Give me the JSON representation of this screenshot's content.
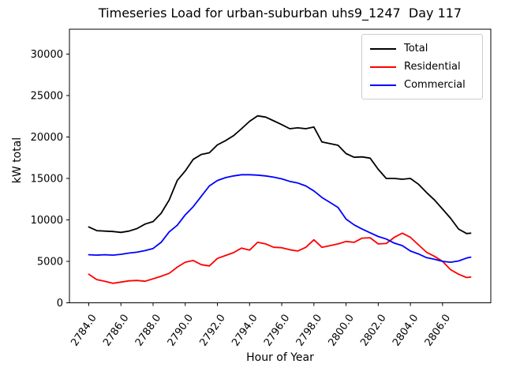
{
  "chart_data": {
    "type": "line",
    "title": "Timeseries Load for urban-suburban uhs9_1247  Day 117",
    "xlabel": "Hour of Year",
    "ylabel": "kW total",
    "xlim": [
      2782.8,
      2809.0
    ],
    "ylim": [
      0,
      33000
    ],
    "grid": false,
    "legend_position": "upper right",
    "x_tick_values": [
      2784,
      2786,
      2788,
      2790,
      2792,
      2794,
      2796,
      2798,
      2800,
      2802,
      2804,
      2806
    ],
    "x_tick_labels": [
      "2784.0",
      "2786.0",
      "2788.0",
      "2790.0",
      "2792.0",
      "2794.0",
      "2796.0",
      "2798.0",
      "2800.0",
      "2802.0",
      "2804.0",
      "2806.0"
    ],
    "y_tick_values": [
      0,
      5000,
      10000,
      15000,
      20000,
      25000,
      30000
    ],
    "y_tick_labels": [
      "0",
      "5000",
      "10000",
      "15000",
      "20000",
      "25000",
      "30000"
    ],
    "x": [
      2784.0,
      2784.5,
      2785.0,
      2785.5,
      2786.0,
      2786.5,
      2787.0,
      2787.5,
      2788.0,
      2788.5,
      2789.0,
      2789.5,
      2790.0,
      2790.5,
      2791.0,
      2791.5,
      2792.0,
      2792.5,
      2793.0,
      2793.5,
      2794.0,
      2794.5,
      2795.0,
      2795.5,
      2796.0,
      2796.5,
      2797.0,
      2797.5,
      2798.0,
      2798.5,
      2799.0,
      2799.5,
      2800.0,
      2800.5,
      2801.0,
      2801.5,
      2802.0,
      2802.5,
      2803.0,
      2803.5,
      2804.0,
      2804.5,
      2805.0,
      2805.5,
      2806.0,
      2806.5,
      2807.0,
      2807.5,
      2807.75
    ],
    "series": [
      {
        "name": "Total",
        "color": "#000000",
        "values": [
          9150,
          8700,
          8650,
          8600,
          8500,
          8650,
          8950,
          9500,
          9800,
          10800,
          12400,
          14750,
          15900,
          17300,
          17900,
          18100,
          19050,
          19550,
          20150,
          21000,
          21900,
          22550,
          22400,
          21950,
          21500,
          21000,
          21100,
          21000,
          21200,
          19400,
          19200,
          19000,
          18000,
          17550,
          17600,
          17450,
          16100,
          15000,
          15000,
          14900,
          15000,
          14300,
          13300,
          12400,
          11300,
          10200,
          8900,
          8350,
          8400
        ]
      },
      {
        "name": "Residential",
        "color": "#ff0000",
        "values": [
          3450,
          2800,
          2600,
          2350,
          2500,
          2650,
          2700,
          2600,
          2900,
          3200,
          3550,
          4300,
          4900,
          5100,
          4600,
          4450,
          5350,
          5700,
          6050,
          6600,
          6350,
          7300,
          7100,
          6700,
          6650,
          6400,
          6250,
          6700,
          7600,
          6700,
          6900,
          7100,
          7400,
          7300,
          7800,
          7850,
          7100,
          7150,
          7900,
          8400,
          7900,
          7000,
          6100,
          5600,
          5000,
          4000,
          3450,
          3050,
          3100
        ]
      },
      {
        "name": "Commercial",
        "color": "#0000ff",
        "values": [
          5800,
          5750,
          5800,
          5750,
          5850,
          6000,
          6100,
          6300,
          6550,
          7300,
          8550,
          9350,
          10600,
          11600,
          12850,
          14100,
          14750,
          15100,
          15300,
          15450,
          15450,
          15400,
          15300,
          15150,
          14950,
          14650,
          14450,
          14100,
          13500,
          12700,
          12100,
          11500,
          10100,
          9400,
          8900,
          8450,
          8000,
          7700,
          7200,
          6900,
          6250,
          5900,
          5450,
          5250,
          5000,
          4900,
          5050,
          5400,
          5500
        ]
      }
    ]
  }
}
